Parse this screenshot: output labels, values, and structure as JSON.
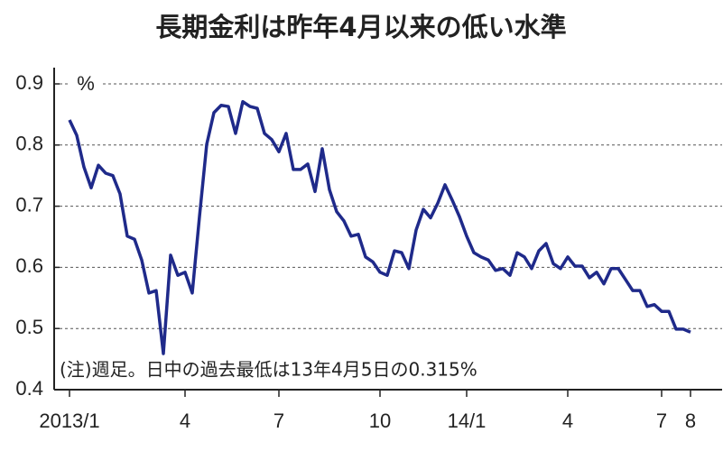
{
  "chart_data": {
    "type": "line",
    "title": "長期金利は昨年4月以来の低い水準",
    "y_unit": "%",
    "annotation": "(注)週足。日中の過去最低は13年4月5日の0.315%",
    "color": "#1f2a8a",
    "ylim": [
      0.4,
      0.9
    ],
    "yticks": [
      0.4,
      0.5,
      0.6,
      0.7,
      0.8,
      0.9
    ],
    "grid": true,
    "categories": [
      "2013/1",
      null,
      null,
      null,
      null,
      null,
      null,
      null,
      null,
      null,
      null,
      null,
      null,
      null,
      null,
      null,
      "4",
      null,
      null,
      null,
      null,
      null,
      null,
      null,
      null,
      null,
      null,
      null,
      null,
      "7",
      null,
      null,
      null,
      null,
      null,
      null,
      null,
      null,
      null,
      null,
      null,
      null,
      null,
      "10",
      null,
      null,
      null,
      null,
      null,
      null,
      null,
      null,
      null,
      null,
      null,
      "14/1",
      null,
      null,
      null,
      null,
      null,
      null,
      null,
      null,
      null,
      null,
      null,
      null,
      null,
      "4",
      null,
      null,
      null,
      null,
      null,
      null,
      null,
      null,
      null,
      null,
      null,
      null,
      "7",
      null,
      null,
      null,
      "8"
    ],
    "values": [
      0.841,
      0.816,
      0.764,
      0.73,
      0.767,
      0.754,
      0.75,
      0.72,
      0.651,
      0.646,
      0.612,
      0.558,
      0.562,
      0.459,
      0.62,
      0.587,
      0.592,
      0.558,
      0.683,
      0.801,
      0.853,
      0.865,
      0.863,
      0.819,
      0.871,
      0.863,
      0.86,
      0.819,
      0.809,
      0.789,
      0.819,
      0.76,
      0.76,
      0.769,
      0.724,
      0.794,
      0.727,
      0.691,
      0.676,
      0.651,
      0.654,
      0.617,
      0.609,
      0.592,
      0.587,
      0.627,
      0.624,
      0.598,
      0.661,
      0.695,
      0.681,
      0.705,
      0.735,
      0.71,
      0.683,
      0.651,
      0.624,
      0.617,
      0.612,
      0.595,
      0.598,
      0.587,
      0.624,
      0.617,
      0.598,
      0.627,
      0.639,
      0.606,
      0.598,
      0.617,
      0.602,
      0.602,
      0.583,
      0.592,
      0.573,
      0.598,
      0.598,
      0.58,
      0.562,
      0.562,
      0.536,
      0.539,
      0.528,
      0.528,
      0.499,
      0.499,
      0.494
    ]
  }
}
